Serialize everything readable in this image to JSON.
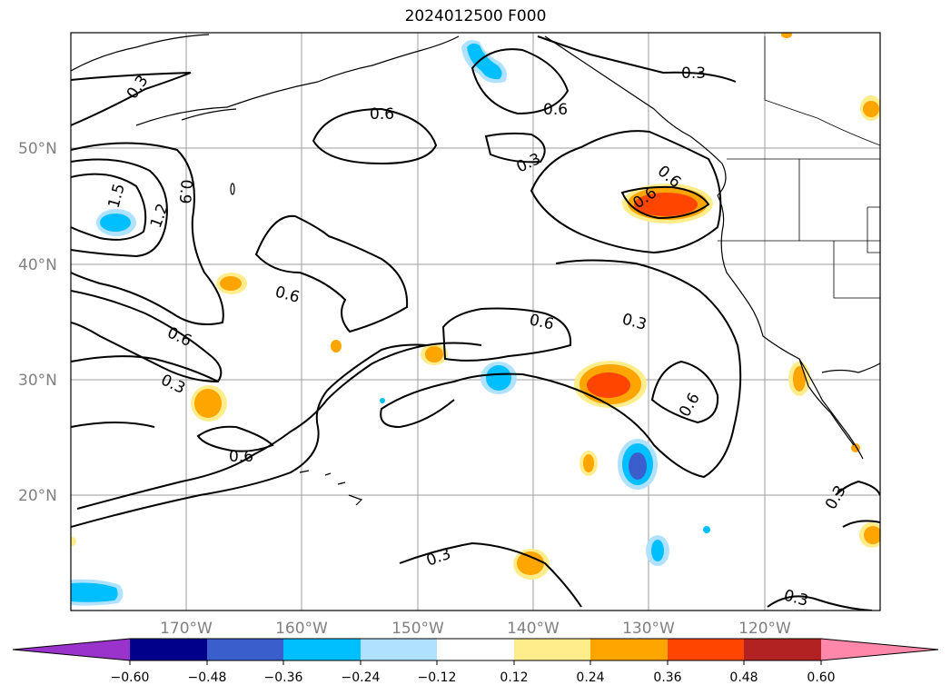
{
  "title": "2024012500 F000",
  "lat_labels": [
    "50°N",
    "40°N",
    "30°N",
    "20°N"
  ],
  "lon_labels": [
    "170°W",
    "160°W",
    "150°W",
    "140°W",
    "130°W",
    "120°W"
  ],
  "colorbar": {
    "ticks": [
      "−0.60",
      "−0.48",
      "−0.36",
      "−0.24",
      "−0.12",
      "0.12",
      "0.24",
      "0.36",
      "0.48",
      "0.60"
    ],
    "colors": [
      "#9933cc",
      "#00008b",
      "#3a5fcd",
      "#00bfff",
      "#b0e2ff",
      "#ffffff",
      "#ffec8b",
      "#ffa500",
      "#ff4500",
      "#b22222",
      "#ff88aa"
    ]
  },
  "contour_labels": [
    "0.3",
    "0.6",
    "0.6",
    "0.3",
    "0.3",
    "1.5",
    "1.2",
    "0.9",
    "0.6",
    "0.6",
    "0.6",
    "0.6",
    "0.3",
    "0.6",
    "0.6",
    "0.3",
    "0.6",
    "0.3",
    "0.3",
    "0.3",
    "0.3"
  ],
  "colors": {
    "grid": "#9e9e9e",
    "contour": "#000000",
    "label": "#808080"
  }
}
